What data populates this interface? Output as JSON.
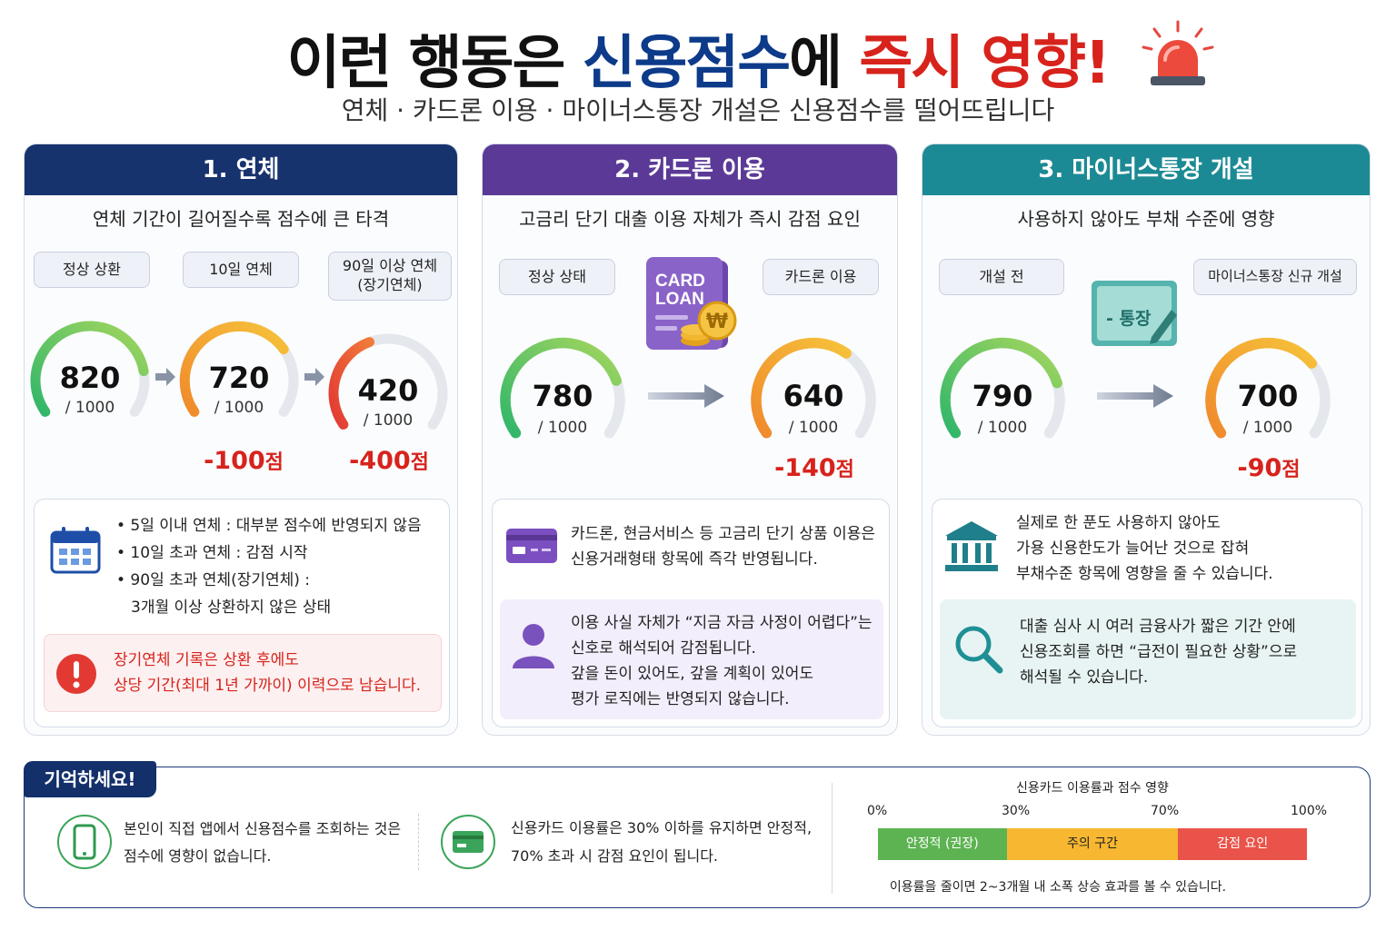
{
  "header": {
    "title_part1": "이런 행동은 ",
    "title_part2": "신용점수",
    "title_part3": "에 ",
    "title_part4": "즉시 영향!",
    "subtitle": "연체 · 카드론 이용 · 마이너스통장 개설은 신용점수를 떨어뜨립니다",
    "icon": "siren-icon"
  },
  "colors": {
    "panel1": "#17336e",
    "panel2": "#5b3a97",
    "panel3": "#1c8a94",
    "red": "#d7231c",
    "green": "#45b74d",
    "orange": "#f6a623"
  },
  "panel1": {
    "header": "1. 연체",
    "subtitle": "연체 기간이 길어질수록 점수에 큰 타격",
    "states": [
      "정상 상환",
      "10일 연체",
      "90일 이상 연체\n(장기연체)"
    ],
    "gauges": [
      {
        "value": "820",
        "max": "/ 1000",
        "score": 820
      },
      {
        "value": "720",
        "max": "/ 1000",
        "score": 720
      },
      {
        "value": "420",
        "max": "/ 1000",
        "score": 420
      }
    ],
    "deltas": [
      {
        "num": "-100",
        "unit": "점"
      },
      {
        "num": "-400",
        "unit": "점"
      }
    ],
    "bullets": [
      "• 5일 이내 연체 : 대부분 점수에 반영되지 않음",
      "• 10일 초과 연체 : 감점 시작",
      "• 90일 초과 연체(장기연체) :",
      "3개월 이상 상환하지 않은 상태"
    ],
    "warning": [
      "장기연체 기록은 상환 후에도",
      "상당 기간(최대 1년 가까이) 이력으로 남습니다."
    ]
  },
  "panel2": {
    "header": "2. 카드론 이용",
    "subtitle": "고금리 단기 대출 이용 자체가 즉시 감점 요인",
    "states": [
      "정상 상태",
      "카드론 이용"
    ],
    "card_label": [
      "CARD",
      "LOAN"
    ],
    "won_symbol": "₩",
    "gauges": [
      {
        "value": "780",
        "max": "/ 1000",
        "score": 780
      },
      {
        "value": "640",
        "max": "/ 1000",
        "score": 640
      }
    ],
    "delta": {
      "num": "-140",
      "unit": "점"
    },
    "info": [
      "카드론, 현금서비스 등 고금리 단기 상품 이용은",
      "신용거래형태 항목에 즉각 반영됩니다."
    ],
    "note": [
      "이용 사실 자체가 “지금 자금 사정이 어렵다”는",
      "신호로 해석되어 감점됩니다.",
      "갚을 돈이 있어도, 갚을 계획이 있어도",
      "평가 로직에는 반영되지 않습니다."
    ]
  },
  "panel3": {
    "header": "3. 마이너스통장 개설",
    "subtitle": "사용하지 않아도 부채 수준에 영향",
    "states": [
      "개설 전",
      "마이너스통장 신규 개설"
    ],
    "bankbook_label": "- 통장",
    "gauges": [
      {
        "value": "790",
        "max": "/ 1000",
        "score": 790
      },
      {
        "value": "700",
        "max": "/ 1000",
        "score": 700
      }
    ],
    "delta": {
      "num": "-90",
      "unit": "점"
    },
    "info": [
      "실제로 한 푼도 사용하지 않아도",
      "가용 신용한도가 늘어난 것으로 잡혀",
      "부채수준 항목에 영향을 줄 수 있습니다."
    ],
    "note": [
      "대출 심사 시 여러 금융사가 짧은 기간 안에",
      "신용조회를 하면 “급전이 필요한 상황”으로",
      "해석될 수 있습니다."
    ]
  },
  "remember": {
    "badge": "기억하세요!",
    "tip1": [
      "본인이 직접 앱에서 신용점수를 조회하는 것은",
      "점수에 영향이 없습니다."
    ],
    "tip2": [
      "신용카드 이용률은 30% 이하를 유지하면 안정적,",
      "70% 초과 시 감점 요인이 됩니다."
    ],
    "bar": {
      "title": "신용카드 이용률과 점수 영향",
      "ticks": [
        "0%",
        "30%",
        "70%",
        "100%"
      ],
      "segments": [
        {
          "label": "안정적 (권장)",
          "from": 0,
          "to": 30,
          "color": "#5db352"
        },
        {
          "label": "주의 구간",
          "from": 30,
          "to": 70,
          "color": "#f7b731"
        },
        {
          "label": "감점 요인",
          "from": 70,
          "to": 100,
          "color": "#ea5349"
        }
      ],
      "footer": "이용률을 줄이면 2~3개월 내 소폭 상승 효과를 볼 수 있습니다."
    }
  }
}
